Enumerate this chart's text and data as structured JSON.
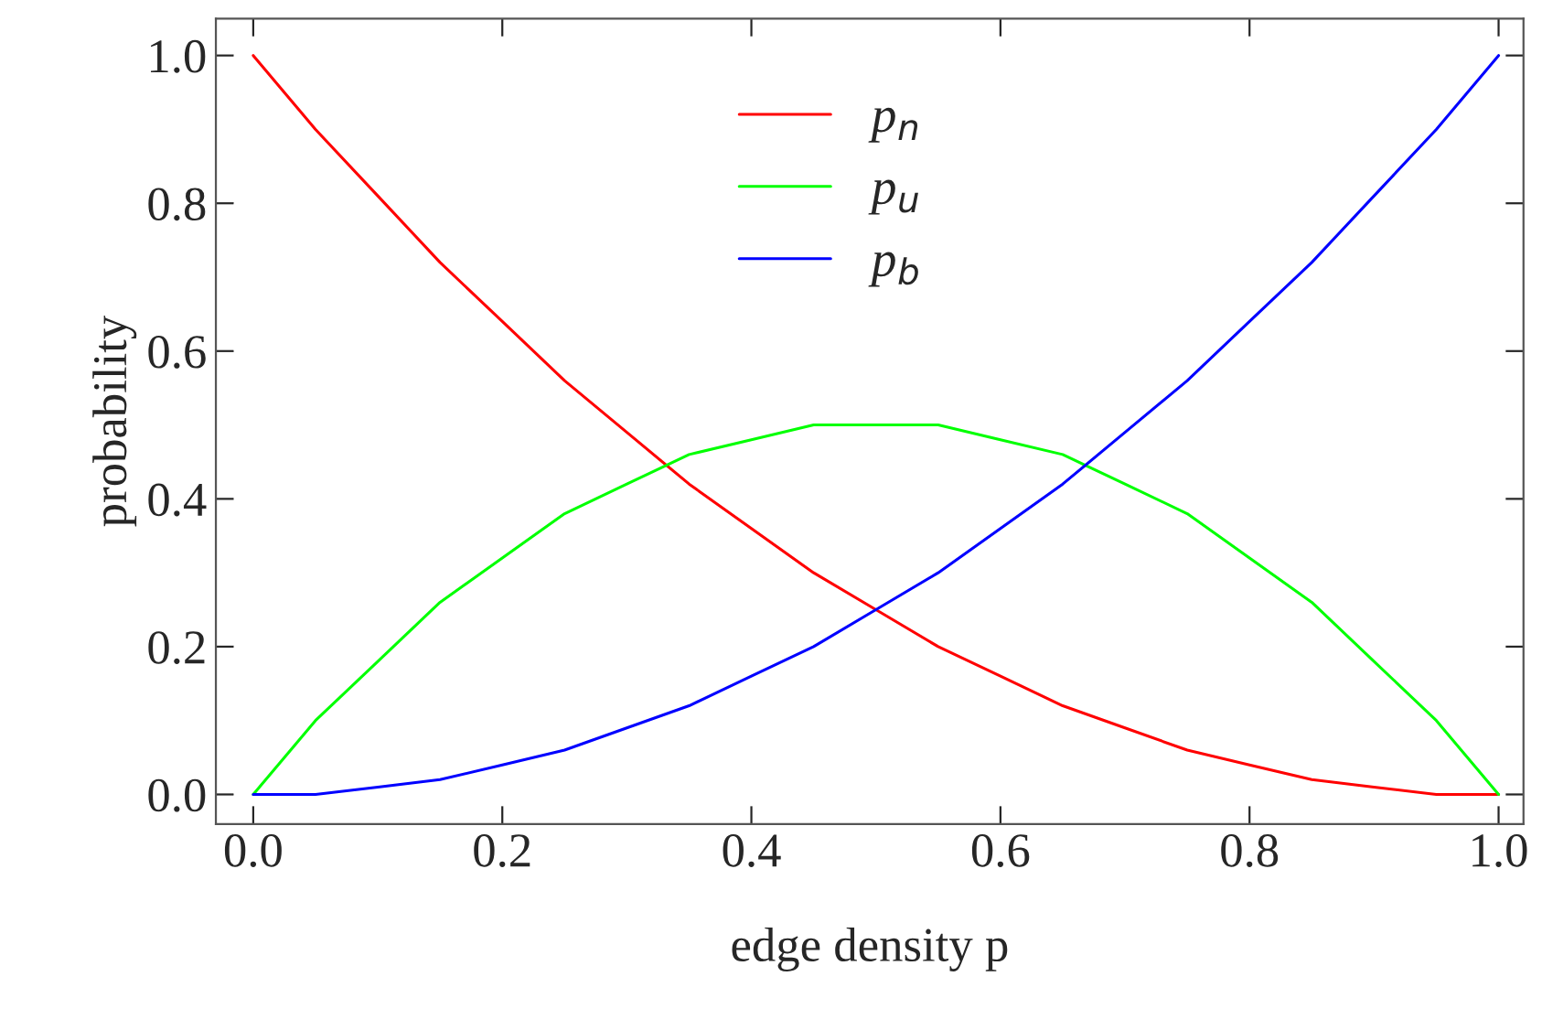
{
  "chart_data": {
    "type": "line",
    "xlabel": "edge density p",
    "ylabel": "probability",
    "x": [
      0,
      0.05,
      0.1,
      0.15,
      0.2,
      0.25,
      0.3,
      0.35,
      0.4,
      0.45,
      0.5,
      0.55,
      0.6,
      0.65,
      0.7,
      0.75,
      0.8,
      0.85,
      0.9,
      0.95,
      1
    ],
    "series": [
      {
        "name": "p$_{n}$",
        "color": "#ff0000",
        "values": [
          1,
          0.9,
          0.81,
          0.72,
          0.64,
          0.56,
          0.49,
          0.42,
          0.36,
          0.3,
          0.25,
          0.2,
          0.16,
          0.12,
          0.09,
          0.06,
          0.04,
          0.02,
          0.01,
          0.0,
          0
        ]
      },
      {
        "name": "p$_{u}$",
        "color": "#00ff00",
        "values": [
          0,
          0.1,
          0.18,
          0.26,
          0.32,
          0.38,
          0.42,
          0.46,
          0.48,
          0.5,
          0.5,
          0.5,
          0.48,
          0.46,
          0.42,
          0.38,
          0.32,
          0.26,
          0.18,
          0.1,
          0
        ]
      },
      {
        "name": "p$_{b}$",
        "color": "#0000ff",
        "values": [
          0,
          0.0,
          0.01,
          0.02,
          0.04,
          0.06,
          0.09,
          0.12,
          0.16,
          0.2,
          0.25,
          0.3,
          0.36,
          0.42,
          0.49,
          0.56,
          0.64,
          0.72,
          0.81,
          0.9,
          1
        ]
      }
    ],
    "xlim": [
      -0.03,
      1.02
    ],
    "ylim": [
      -0.04,
      1.05
    ],
    "xticks": [
      {
        "value": 0,
        "label": "0.0"
      },
      0.2,
      0.4,
      0.6,
      0.8,
      {
        "value": 1,
        "label": "1.0"
      }
    ],
    "yticks": [
      {
        "value": 0,
        "label": "0.0"
      },
      0.2,
      0.4,
      0.6,
      0.8,
      {
        "value": 1,
        "label": "1.0"
      }
    ],
    "grid": false,
    "legend": "top",
    "marker": "none",
    "line_style": "solid"
  }
}
